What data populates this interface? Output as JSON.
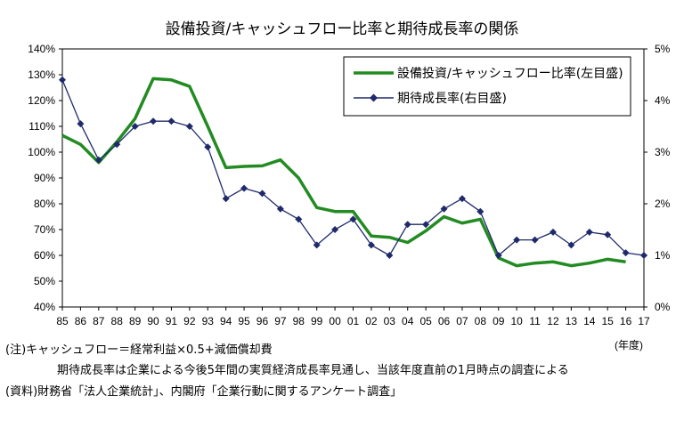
{
  "chart_data": {
    "type": "line",
    "title": "設備投資/キャッシュフロー比率と期待成長率の関係",
    "categories": [
      "85",
      "86",
      "87",
      "88",
      "89",
      "90",
      "91",
      "92",
      "93",
      "94",
      "95",
      "96",
      "97",
      "98",
      "99",
      "00",
      "01",
      "02",
      "03",
      "04",
      "05",
      "06",
      "07",
      "08",
      "09",
      "10",
      "11",
      "12",
      "13",
      "14",
      "15",
      "16",
      "17"
    ],
    "y_left": {
      "min": 40,
      "max": 140,
      "step": 10,
      "tick_labels": [
        "40%",
        "50%",
        "60%",
        "70%",
        "80%",
        "90%",
        "100%",
        "110%",
        "120%",
        "130%",
        "140%"
      ]
    },
    "y_right": {
      "min": 0,
      "max": 5,
      "step": 1,
      "tick_labels": [
        "0%",
        "1%",
        "2%",
        "3%",
        "4%",
        "5%"
      ]
    },
    "x_unit_label": "(年度)",
    "legend_placement": "top-right",
    "series": [
      {
        "name": "設備投資/キャッシュフロー比率(左目盛)",
        "axis": "left",
        "color": "#228B22",
        "marker": "none",
        "values": [
          106.5,
          103,
          96,
          104,
          113,
          128.5,
          128,
          125.5,
          110,
          94,
          94.5,
          94.7,
          97,
          90,
          78.5,
          77,
          77,
          67.5,
          67,
          65,
          69.5,
          75,
          72.5,
          74,
          59,
          56,
          57,
          57.5,
          56,
          57,
          58.5,
          57.5,
          null
        ]
      },
      {
        "name": "期待成長率(右目盛)",
        "axis": "right",
        "color": "#1F2A6B",
        "marker": "diamond",
        "values": [
          4.4,
          3.55,
          2.85,
          3.15,
          3.5,
          3.6,
          3.6,
          3.5,
          3.1,
          2.1,
          2.3,
          2.2,
          1.9,
          1.7,
          1.2,
          1.5,
          1.7,
          1.2,
          1.0,
          1.6,
          1.6,
          1.9,
          2.1,
          1.85,
          1.0,
          1.3,
          1.3,
          1.45,
          1.2,
          1.45,
          1.4,
          1.05,
          1.0
        ]
      }
    ]
  },
  "notes": {
    "line1": "(注)キャッシュフロー＝経常利益×0.5+減価償却費",
    "line2": "期待成長率は企業による今後5年間の実質経済成長率見通し、当該年度直前の1月時点の調査による",
    "line3": "(資料)財務省「法人企業統計」、内閣府「企業行動に関するアンケート調査」"
  }
}
